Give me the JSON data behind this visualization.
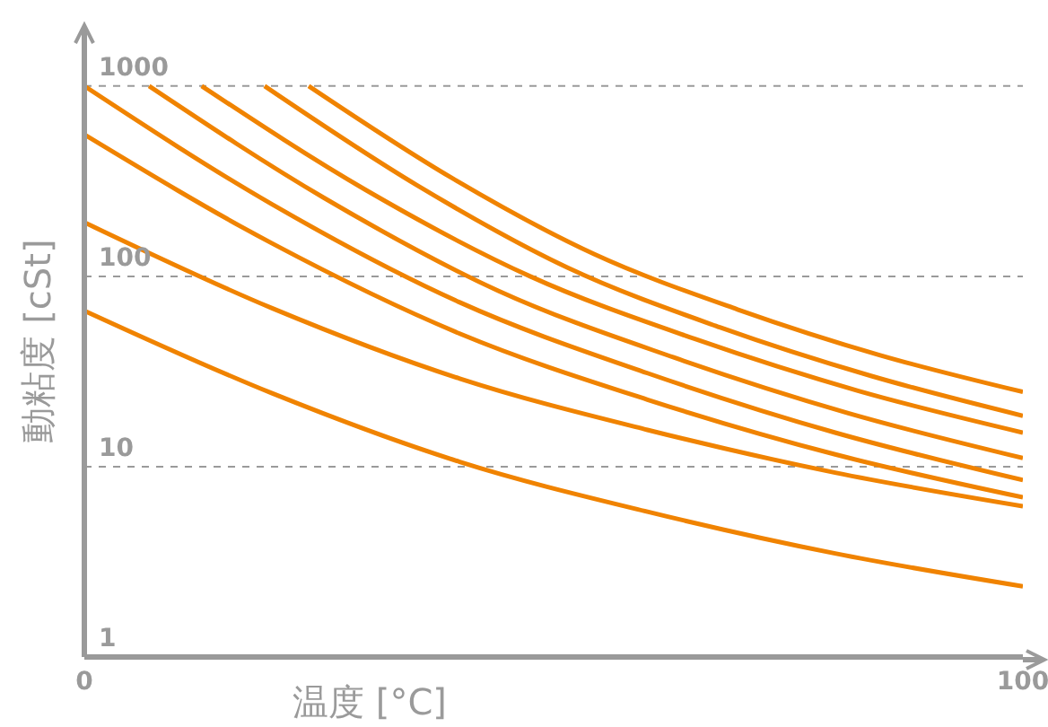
{
  "chart_data": {
    "type": "line",
    "xlabel": "温度 [°C]",
    "ylabel": "動粘度 [cSt]",
    "log": "y",
    "grid": "y",
    "xlim": [
      0,
      100
    ],
    "xticks": [
      0,
      100
    ],
    "ylim": [
      1,
      2000
    ],
    "yticks": [
      1,
      10,
      100,
      1000
    ],
    "series": [
      {
        "color": "#f08300",
        "x": [
          23.9,
          39.1,
          54.3,
          69.6,
          84.8,
          100
        ],
        "values": [
          1000,
          330,
          131,
          67,
          38.5,
          24.7
        ]
      },
      {
        "color": "#f08300",
        "x": [
          19.2,
          35.4,
          51.5,
          67.7,
          83.8,
          100
        ],
        "values": [
          1000,
          302,
          111,
          54,
          30,
          18.5
        ]
      },
      {
        "color": "#f08300",
        "x": [
          12.5,
          30,
          47.5,
          65,
          82.5,
          100
        ],
        "values": [
          1000,
          284,
          100,
          47,
          25,
          15.1
        ]
      },
      {
        "color": "#f08300",
        "x": [
          6.9,
          25.5,
          44.1,
          62.8,
          81.4,
          100
        ],
        "values": [
          1000,
          259,
          84,
          37.5,
          19.1,
          11.1
        ]
      },
      {
        "color": "#f08300",
        "x": [
          0,
          20,
          40,
          60,
          80,
          100
        ],
        "values": [
          1000,
          239,
          73,
          31,
          15.1,
          8.5
        ]
      },
      {
        "color": "#f08300",
        "x": [
          0,
          20,
          40,
          60,
          80,
          100
        ],
        "values": [
          556,
          149,
          50,
          22.5,
          11.6,
          6.9
        ]
      },
      {
        "color": "#f08300",
        "x": [
          0,
          20,
          40,
          60,
          80,
          100
        ],
        "values": [
          192,
          68,
          29,
          15.6,
          9.3,
          6.2
        ]
      },
      {
        "color": "#f08300",
        "x": [
          0,
          20,
          40,
          60,
          80,
          100
        ],
        "values": [
          66,
          24.3,
          10.6,
          5.8,
          3.5,
          2.35
        ]
      }
    ]
  }
}
